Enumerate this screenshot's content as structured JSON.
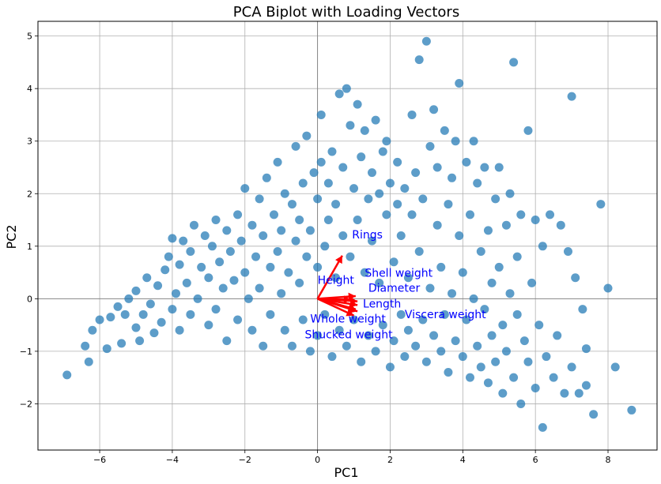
{
  "chart_data": {
    "type": "scatter",
    "title": "PCA Biplot with Loading Vectors",
    "xlabel": "PC1",
    "ylabel": "PC2",
    "xlim": [
      -7.7,
      9.35
    ],
    "ylim": [
      -2.88,
      5.28
    ],
    "xticks": [
      -6,
      -4,
      -2,
      0,
      2,
      4,
      6,
      8
    ],
    "yticks": [
      -2,
      -1,
      0,
      1,
      2,
      3,
      4,
      5
    ],
    "grid": true,
    "zero_lines": true,
    "colors": {
      "points": "#1f77b4",
      "vectors": "#ff0000",
      "vector_labels": "#0000ff",
      "grid": "#b0b0b0",
      "zero_line": "#808080"
    },
    "series": [
      {
        "values": [
          [
            -6.9,
            -1.45
          ],
          [
            -6.3,
            -1.2
          ],
          [
            -6.4,
            -0.9
          ],
          [
            -6.2,
            -0.6
          ],
          [
            -6.0,
            -0.4
          ],
          [
            -5.8,
            -0.95
          ],
          [
            -5.7,
            -0.35
          ],
          [
            -5.5,
            -0.15
          ],
          [
            -5.4,
            -0.85
          ],
          [
            -5.3,
            -0.3
          ],
          [
            -5.2,
            0.0
          ],
          [
            -5.0,
            -0.55
          ],
          [
            -5.0,
            0.15
          ],
          [
            -4.9,
            -0.8
          ],
          [
            -4.8,
            -0.3
          ],
          [
            -4.7,
            0.4
          ],
          [
            -4.6,
            -0.1
          ],
          [
            -4.5,
            -0.65
          ],
          [
            -4.4,
            0.25
          ],
          [
            -4.3,
            -0.45
          ],
          [
            -4.2,
            0.55
          ],
          [
            -4.1,
            0.8
          ],
          [
            -4.0,
            -0.2
          ],
          [
            -4.0,
            1.15
          ],
          [
            -3.9,
            0.1
          ],
          [
            -3.8,
            -0.6
          ],
          [
            -3.8,
            0.65
          ],
          [
            -3.7,
            1.1
          ],
          [
            -3.6,
            0.3
          ],
          [
            -3.5,
            -0.3
          ],
          [
            -3.5,
            0.9
          ],
          [
            -3.4,
            1.4
          ],
          [
            -3.3,
            0.0
          ],
          [
            -3.2,
            0.6
          ],
          [
            -3.1,
            1.2
          ],
          [
            -3.0,
            -0.5
          ],
          [
            -3.0,
            0.4
          ],
          [
            -2.9,
            1.0
          ],
          [
            -2.8,
            -0.2
          ],
          [
            -2.8,
            1.5
          ],
          [
            -2.7,
            0.7
          ],
          [
            -2.6,
            0.2
          ],
          [
            -2.5,
            1.3
          ],
          [
            -2.5,
            -0.8
          ],
          [
            -2.4,
            0.9
          ],
          [
            -2.3,
            0.35
          ],
          [
            -2.2,
            1.6
          ],
          [
            -2.2,
            -0.4
          ],
          [
            -2.1,
            1.1
          ],
          [
            -2.0,
            0.5
          ],
          [
            -2.0,
            2.1
          ],
          [
            -1.9,
            0.0
          ],
          [
            -1.8,
            1.4
          ],
          [
            -1.8,
            -0.6
          ],
          [
            -1.7,
            0.8
          ],
          [
            -1.6,
            1.9
          ],
          [
            -1.6,
            0.2
          ],
          [
            -1.5,
            1.2
          ],
          [
            -1.5,
            -0.9
          ],
          [
            -1.4,
            2.3
          ],
          [
            -1.3,
            0.6
          ],
          [
            -1.3,
            -0.3
          ],
          [
            -1.2,
            1.6
          ],
          [
            -1.1,
            0.9
          ],
          [
            -1.1,
            2.6
          ],
          [
            -1.0,
            0.1
          ],
          [
            -1.0,
            1.3
          ],
          [
            -0.9,
            -0.6
          ],
          [
            -0.9,
            2.0
          ],
          [
            -0.8,
            0.5
          ],
          [
            -0.7,
            1.8
          ],
          [
            -0.7,
            -0.9
          ],
          [
            -0.6,
            1.1
          ],
          [
            -0.6,
            2.9
          ],
          [
            -0.5,
            0.3
          ],
          [
            -0.5,
            1.5
          ],
          [
            -0.4,
            -0.4
          ],
          [
            -0.4,
            2.2
          ],
          [
            -0.3,
            0.8
          ],
          [
            -0.3,
            3.1
          ],
          [
            -0.2,
            1.3
          ],
          [
            -0.2,
            -1.0
          ],
          [
            -0.1,
            2.4
          ],
          [
            0.0,
            0.6
          ],
          [
            0.0,
            1.9
          ],
          [
            0.0,
            -0.7
          ],
          [
            0.1,
            2.6
          ],
          [
            0.1,
            3.5
          ],
          [
            0.2,
            1.0
          ],
          [
            0.2,
            -0.3
          ],
          [
            0.3,
            2.2
          ],
          [
            0.3,
            1.5
          ],
          [
            0.4,
            -1.1
          ],
          [
            0.4,
            2.8
          ],
          [
            0.5,
            0.4
          ],
          [
            0.5,
            1.8
          ],
          [
            0.6,
            3.9
          ],
          [
            0.6,
            -0.6
          ],
          [
            0.7,
            2.5
          ],
          [
            0.7,
            1.2
          ],
          [
            0.8,
            4.0
          ],
          [
            0.8,
            -0.9
          ],
          [
            0.9,
            3.3
          ],
          [
            0.9,
            0.8
          ],
          [
            1.0,
            2.1
          ],
          [
            1.0,
            -0.4
          ],
          [
            1.1,
            3.7
          ],
          [
            1.1,
            1.5
          ],
          [
            1.2,
            -1.2
          ],
          [
            1.2,
            2.7
          ],
          [
            1.3,
            0.5
          ],
          [
            1.3,
            3.2
          ],
          [
            1.4,
            1.9
          ],
          [
            1.4,
            -0.7
          ],
          [
            1.5,
            2.4
          ],
          [
            1.5,
            1.1
          ],
          [
            1.6,
            3.4
          ],
          [
            1.6,
            -1.0
          ],
          [
            1.7,
            2.0
          ],
          [
            1.7,
            0.3
          ],
          [
            1.8,
            2.8
          ],
          [
            1.8,
            -0.5
          ],
          [
            1.9,
            1.6
          ],
          [
            1.9,
            3.0
          ],
          [
            2.0,
            -1.3
          ],
          [
            2.0,
            2.2
          ],
          [
            2.1,
            0.7
          ],
          [
            2.1,
            -0.8
          ],
          [
            2.2,
            1.8
          ],
          [
            2.2,
            2.6
          ],
          [
            2.3,
            -0.3
          ],
          [
            2.3,
            1.2
          ],
          [
            2.4,
            -1.1
          ],
          [
            2.4,
            2.1
          ],
          [
            2.5,
            0.4
          ],
          [
            2.5,
            -0.6
          ],
          [
            2.6,
            1.6
          ],
          [
            2.6,
            3.5
          ],
          [
            2.7,
            -0.9
          ],
          [
            2.7,
            2.4
          ],
          [
            2.8,
            4.55
          ],
          [
            2.8,
            0.9
          ],
          [
            2.9,
            -0.4
          ],
          [
            2.9,
            1.9
          ],
          [
            3.0,
            4.9
          ],
          [
            3.0,
            -1.2
          ],
          [
            3.1,
            2.9
          ],
          [
            3.1,
            0.2
          ],
          [
            3.2,
            3.6
          ],
          [
            3.2,
            -0.7
          ],
          [
            3.3,
            1.4
          ],
          [
            3.3,
            2.5
          ],
          [
            3.4,
            -1.0
          ],
          [
            3.4,
            0.6
          ],
          [
            3.5,
            3.2
          ],
          [
            3.5,
            -0.3
          ],
          [
            3.6,
            1.8
          ],
          [
            3.6,
            -1.4
          ],
          [
            3.7,
            2.3
          ],
          [
            3.7,
            0.1
          ],
          [
            3.8,
            3.0
          ],
          [
            3.8,
            -0.8
          ],
          [
            3.9,
            4.1
          ],
          [
            3.9,
            1.2
          ],
          [
            4.0,
            -1.1
          ],
          [
            4.0,
            0.5
          ],
          [
            4.1,
            2.6
          ],
          [
            4.1,
            -0.4
          ],
          [
            4.2,
            1.6
          ],
          [
            4.2,
            -1.5
          ],
          [
            4.3,
            3.0
          ],
          [
            4.3,
            0.0
          ],
          [
            4.4,
            -0.9
          ],
          [
            4.4,
            2.2
          ],
          [
            4.5,
            0.9
          ],
          [
            4.5,
            -1.3
          ],
          [
            4.6,
            2.5
          ],
          [
            4.6,
            -0.2
          ],
          [
            4.7,
            1.3
          ],
          [
            4.7,
            -1.6
          ],
          [
            4.8,
            0.3
          ],
          [
            4.8,
            -0.7
          ],
          [
            4.9,
            1.9
          ],
          [
            4.9,
            -1.2
          ],
          [
            5.0,
            2.5
          ],
          [
            5.0,
            0.6
          ],
          [
            5.1,
            -0.5
          ],
          [
            5.1,
            -1.8
          ],
          [
            5.2,
            1.4
          ],
          [
            5.2,
            -1.0
          ],
          [
            5.3,
            0.1
          ],
          [
            5.3,
            2.0
          ],
          [
            5.4,
            4.5
          ],
          [
            5.4,
            -1.5
          ],
          [
            5.5,
            -0.3
          ],
          [
            5.5,
            0.8
          ],
          [
            5.6,
            -2.0
          ],
          [
            5.6,
            1.6
          ],
          [
            5.7,
            -0.8
          ],
          [
            5.8,
            3.2
          ],
          [
            5.8,
            -1.2
          ],
          [
            5.9,
            0.3
          ],
          [
            6.0,
            -1.7
          ],
          [
            6.0,
            1.5
          ],
          [
            6.1,
            -0.5
          ],
          [
            6.2,
            -2.45
          ],
          [
            6.2,
            1.0
          ],
          [
            6.3,
            -1.1
          ],
          [
            6.4,
            1.6
          ],
          [
            6.5,
            -1.5
          ],
          [
            6.6,
            -0.7
          ],
          [
            6.7,
            1.4
          ],
          [
            6.8,
            -1.8
          ],
          [
            6.9,
            0.9
          ],
          [
            7.0,
            3.85
          ],
          [
            7.0,
            -1.3
          ],
          [
            7.1,
            0.4
          ],
          [
            7.2,
            -1.8
          ],
          [
            7.3,
            -0.2
          ],
          [
            7.4,
            -0.95
          ],
          [
            7.4,
            -1.65
          ],
          [
            7.6,
            -2.2
          ],
          [
            7.8,
            1.8
          ],
          [
            8.0,
            0.2
          ],
          [
            8.2,
            -1.3
          ],
          [
            8.65,
            -2.12
          ]
        ]
      }
    ],
    "loadings": [
      {
        "name": "Rings",
        "vector": [
          0.68,
          0.82
        ],
        "label_at": [
          0.95,
          1.15
        ]
      },
      {
        "name": "Height",
        "vector": [
          0.92,
          -0.02
        ],
        "label_at": [
          0.0,
          0.28
        ]
      },
      {
        "name": "Shell weight",
        "vector": [
          1.05,
          0.05
        ],
        "label_at": [
          1.3,
          0.42
        ]
      },
      {
        "name": "Diameter",
        "vector": [
          1.1,
          -0.05
        ],
        "label_at": [
          1.4,
          0.13
        ]
      },
      {
        "name": "Length",
        "vector": [
          1.1,
          -0.12
        ],
        "label_at": [
          1.25,
          -0.17
        ]
      },
      {
        "name": "Viscera weight",
        "vector": [
          1.05,
          -0.2
        ],
        "label_at": [
          2.4,
          -0.37
        ]
      },
      {
        "name": "Whole weight",
        "vector": [
          1.1,
          -0.24
        ],
        "label_at": [
          -0.2,
          -0.45
        ]
      },
      {
        "name": "Shucked weight",
        "vector": [
          1.0,
          -0.32
        ],
        "label_at": [
          -0.35,
          -0.75
        ]
      }
    ]
  }
}
